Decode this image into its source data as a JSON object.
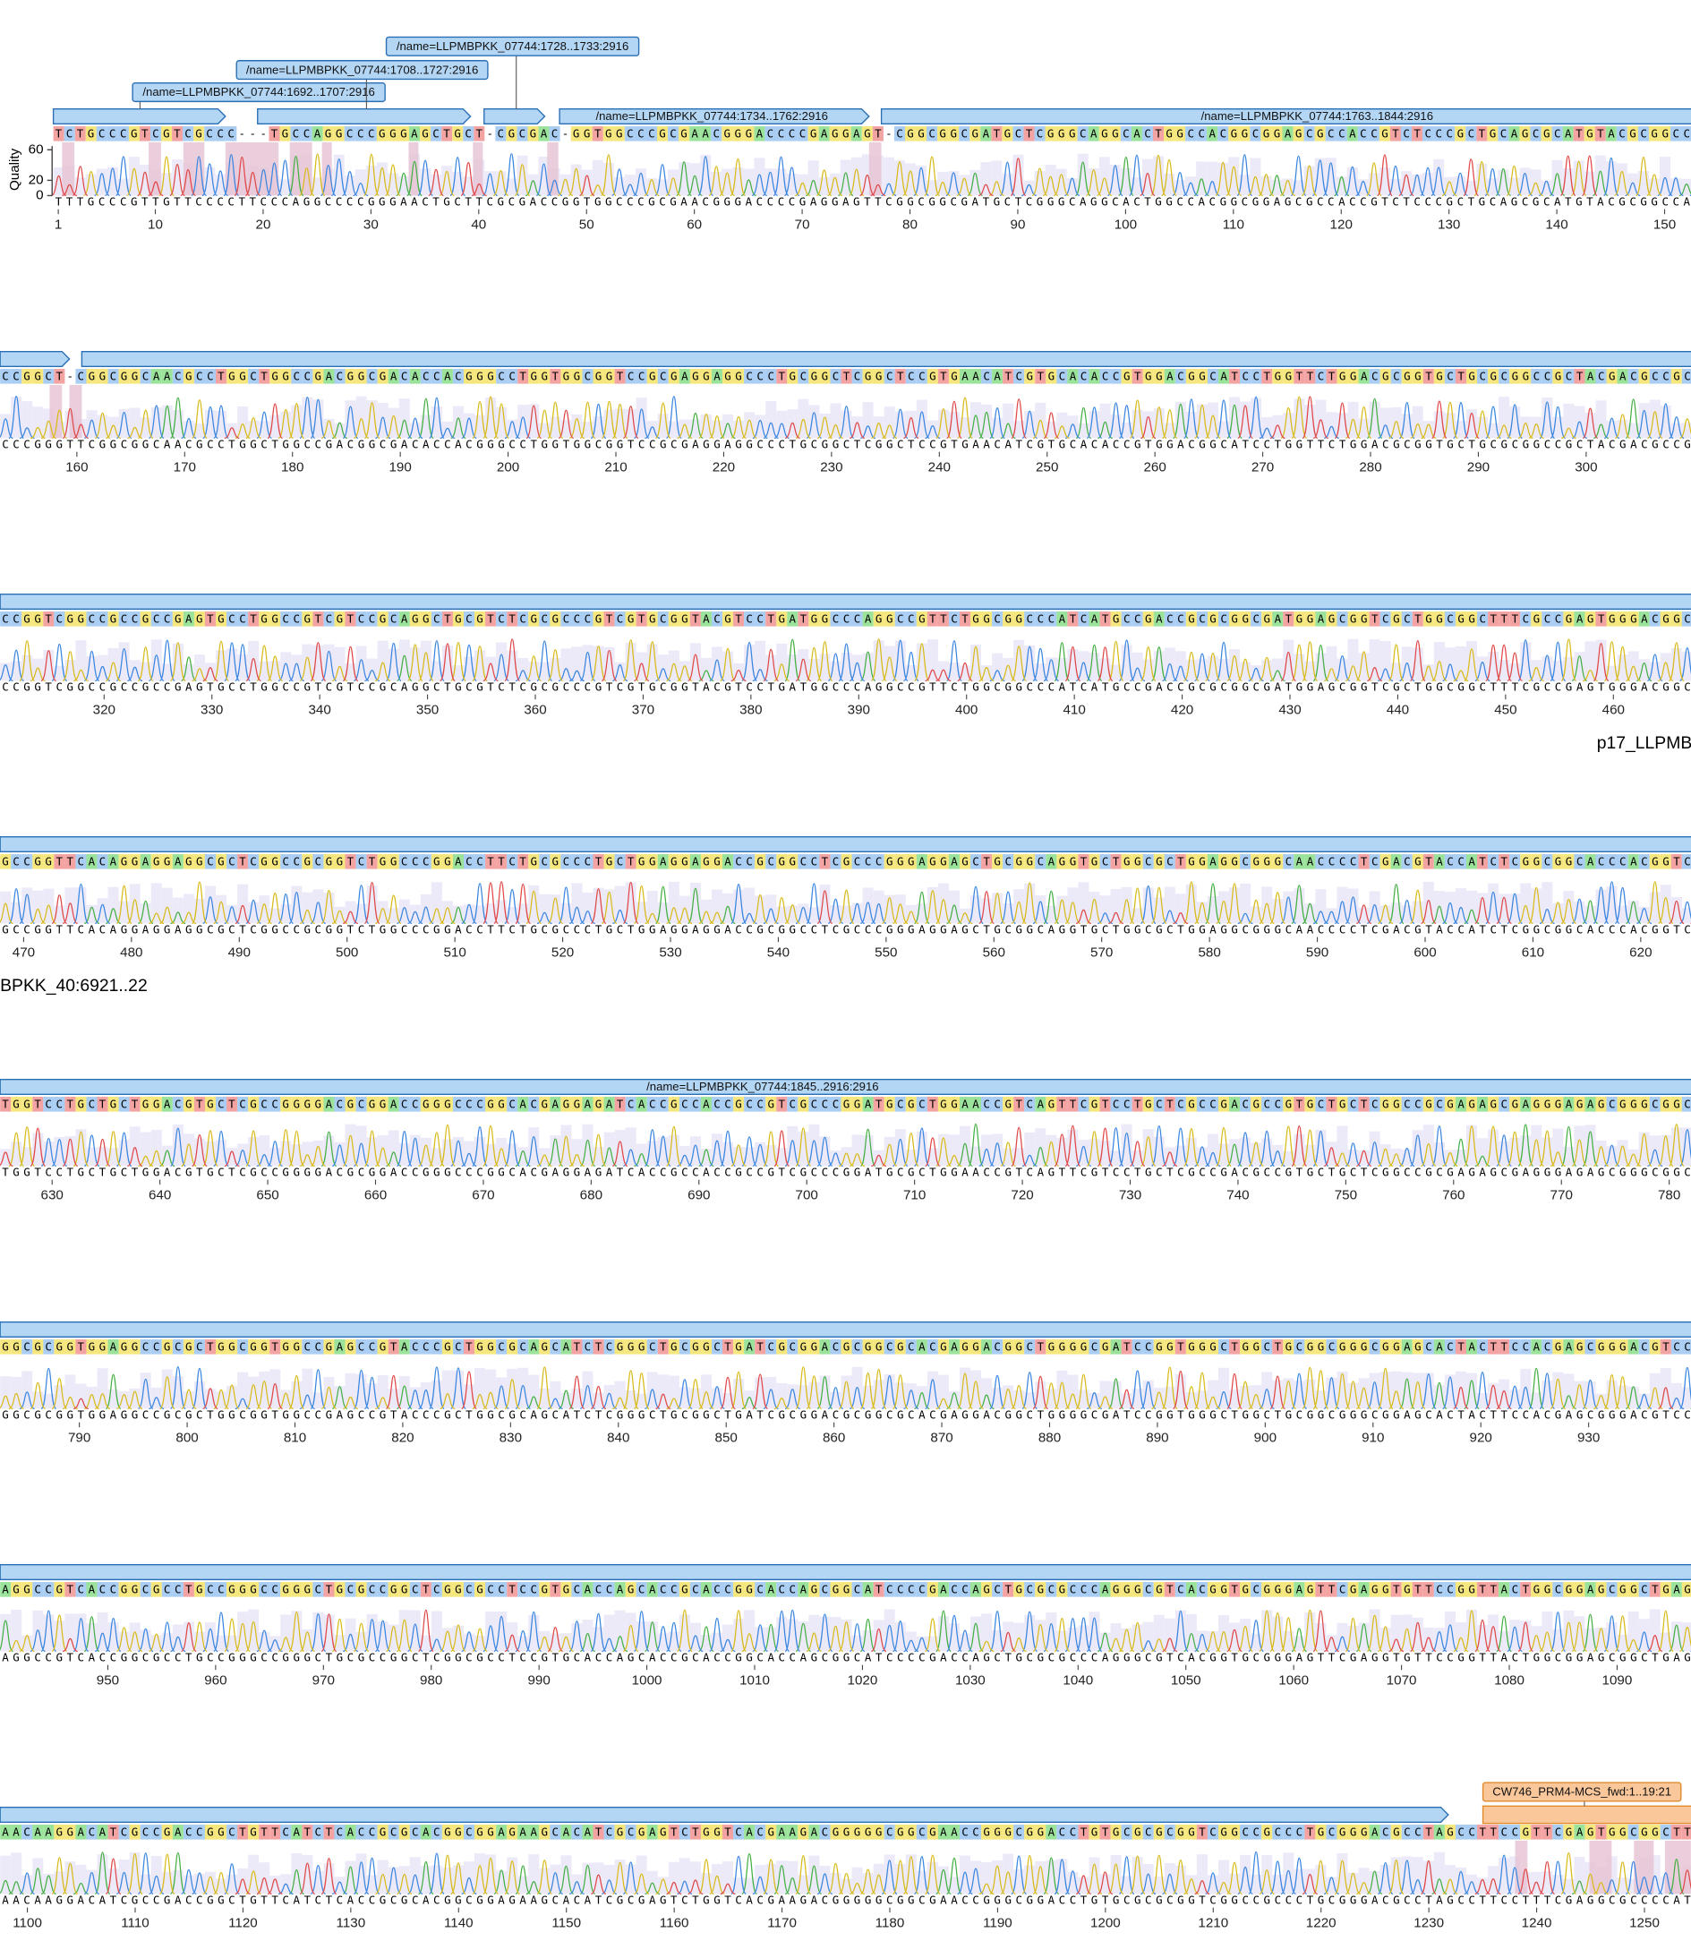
{
  "axis_label": "Quality",
  "quality_ticks": [
    0,
    20,
    60
  ],
  "annotations": [
    "/name=LLPMBPKK_07744:1692..1707:2916",
    "/name=LLPMBPKK_07744:1708..1727:2916",
    "/name=LLPMBPKK_07744:1728..1733:2916",
    "/name=LLPMBPKK_07744:1734..1762:2916",
    "/name=LLPMBPKK_07744:1763..1844:2916",
    "/name=LLPMBPKK_07744:1845..2916:2916",
    "CW746_PRM4-MCS_fwd:1..19:21"
  ],
  "contig_label_parts": [
    "p17_LLPMB",
    "BPKK_40:6921..22"
  ],
  "rows": [
    {
      "consensus": "TCTGCCCGTCGTCGCCC---TGCCAGGCCCGGGAGCTGCT-CGCGAC-GGTGGCCCGCGAACGGGACCCCGAGGAGT-CGGCGGCGATGCTCGGGCAGGCACTGGCCACGGCGGAGCGCCACCGTCTCCCGCTGCAGCGCATGTACGCGGCCAC",
      "read": "TTTGCCCGTTGTTCCCCTTCCCAGGCCCCGGGAACTGCTTCGCGACCGGTGGCCCGCGAACGGGACCCCGAGGAGTTCGGCGGCGATGCTCGGGCAGGCACTGGCCACGGCGGAGCGCCACCGTCTCCCGCTGCAGCGCATGTACGCGGCCAC",
      "ticks": [
        1,
        10,
        20,
        30,
        40,
        50,
        60,
        70,
        80,
        90,
        100,
        110,
        120,
        130,
        140,
        150
      ]
    },
    {
      "consensus": "CCGGCT-CGGCGGCAACGCCTGGCTGGCCGACGGCGACACCACGGGCCTGGTGGCGGTCCGCGAGGAGGCCCTGCGGCTCGGCTCCGTGAACATCGTGCACACCGTGGACGGCATCCTGGTTCTGGACGCGGTGCTGCGCGGCCGCTACGACGCCGC",
      "read": "CCCGGGTTCGGCGGCAACGCCTGGCTGGCCGACGGCGACACCACGGGCCTGGTGGCGGTCCGCGAGGAGGCCCTGCGGCTCGGCTCCGTGAACATCGTGCACACCGTGGACGGCATCCTGGTTCTGGACGCGGTGCTGCGCGGCCGCTACGACGCCGC",
      "ticks": [
        160,
        170,
        180,
        190,
        200,
        210,
        220,
        230,
        240,
        250,
        260,
        270,
        280,
        290,
        300
      ]
    },
    {
      "consensus": "CCGGTCGGCCGCCGCCGAGTGCCTGGCCGTCGTCCGCAGGCTGCGTCTCGCGCCCGTCGTGCGGTACGTCCTGATGGCCCAGGCCGTTCTGGCGGCCCATCATGCCGACCGCGCGGCGATGGAGCGGTCGCTGGCGGCTTTCGCCGAGTGGGACGGC",
      "read": "CCGGTCGGCCGCCGCCGAGTGCCTGGCCGTCGTCCGCAGGCTGCGTCTCGCGCCCGTCGTGCGGTACGTCCTGATGGCCCAGGCCGTTCTGGCGGCCCATCATGCCGACCGCGCGGCGATGGAGCGGTCGCTGGCGGCTTTCGCCGAGTGGGACGGC",
      "ticks": [
        320,
        330,
        340,
        350,
        360,
        370,
        380,
        390,
        400,
        410,
        420,
        430,
        440,
        450,
        460
      ]
    },
    {
      "consensus": "GCCGGTTCACAGGAGGAGGCGCTCGGCCGCGGTCTGGCCCGGACCTTCTGCGCCCTGCTGGAGGAGGACCGCGGCCTCGCCCGGGAGGAGCTGCGGCAGGTGCTGGCGCTGGAGGCGGGCAACCCCTCGACGTACCATCTCGGCGGCACCCACGGTCT",
      "read": "GCCGGTTCACAGGAGGAGGCGCTCGGCCGCGGTCTGGCCCGGACCTTCTGCGCCCTGCTGGAGGAGGACCGCGGCCTCGCCCGGGAGGAGCTGCGGCAGGTGCTGGCGCTGGAGGCGGGCAACCCCTCGACGTACCATCTCGGCGGCACCCACGGTCT",
      "ticks": [
        470,
        480,
        490,
        500,
        510,
        520,
        530,
        540,
        550,
        560,
        570,
        580,
        590,
        600,
        610,
        620
      ]
    },
    {
      "consensus": "TGGTCCTGCTGCTGGACGTGCTCGCCGGGGACGCGGACCGGGCCCGGCACGAGGAGATCACCGCCACCGCCGTCGCCCGGATGCGCTGGAACCGTCAGTTCGTCCTGCTCGCCGACGCCGTGCTGCTCGGCCGCGAGAGCGAGGGAGAGCGGGCGGCG",
      "read": "TGGTCCTGCTGCTGGACGTGCTCGCCGGGGACGCGGACCGGGCCCGGCACGAGGAGATCACCGCCACCGCCGTCGCCCGGATGCGCTGGAACCGTCAGTTCGTCCTGCTCGCCGACGCCGTGCTGCTCGGCCGCGAGAGCGAGGGAGAGCGGGCGGCG",
      "ticks": [
        630,
        640,
        650,
        660,
        670,
        680,
        690,
        700,
        710,
        720,
        730,
        740,
        750,
        760,
        770,
        780
      ]
    },
    {
      "consensus": "GGCGCGGTGGAGGCCGCGCTGGCGGTGGCCGAGCCGTACCCGCTGGCGCAGCATCTCGGGCTGCGGCTGATCGCGGACGCGGCGCACGAGGACGGCTGGGGCGATCCGGTGGGCTGGCTGCGGCGGGCGGAGCACTACTTCCACGAGCGGGACGTCCA",
      "read": "GGCGCGGTGGAGGCCGCGCTGGCGGTGGCCGAGCCGTACCCGCTGGCGCAGCATCTCGGGCTGCGGCTGATCGCGGACGCGGCGCACGAGGACGGCTGGGGCGATCCGGTGGGCTGGCTGCGGCGGGCGGAGCACTACTTCCACGAGCGGGACGTCCA",
      "ticks": [
        790,
        800,
        810,
        820,
        830,
        840,
        850,
        860,
        870,
        880,
        890,
        900,
        910,
        920,
        930
      ]
    },
    {
      "consensus": "AGGCCGTCACCGGCGCCTGCCGGGCCGGGCTGCGCCGGCTCGGCGCCTCCGTGCACCAGCACCGCACCGGCACCAGCGGCATCCCCGACCAGCTGCGCGCCCAGGGCGTCACGGTGCGGGAGTTCGAGGTGTTCCGGTTACTGGCGGAGCGGCTGAGC",
      "read": "AGGCCGTCACCGGCGCCTGCCGGGCCGGGCTGCGCCGGCTCGGCGCCTCCGTGCACCAGCACCGCACCGGCACCAGCGGCATCCCCGACCAGCTGCGCGCCCAGGGCGTCACGGTGCGGGAGTTCGAGGTGTTCCGGTTACTGGCGGAGCGGCTGAGC",
      "ticks": [
        950,
        960,
        970,
        980,
        990,
        1000,
        1010,
        1020,
        1030,
        1040,
        1050,
        1060,
        1070,
        1080,
        1090
      ]
    },
    {
      "consensus": "AACAAGGACATCGCCGACCGGCTGTTCATCTCACCGCGCACGGCGGAGAAGCACATCGCGAGTCTGGTCACGAAGACGGGGGCGGCGAACCGGGCGGACCTGTGCGCGCGGTCGGCCGCCCTGCGGGACGCCTAGCCTTCCGTTCGAGTGGCGGCTT",
      "read": "AACAAGGACATCGCCGACCGGCTGTTCATCTCACCGCGCACGGCGGAGAAGCACATCGCGAGTCTGGTCACGAAGACGGGGGCGGCGAACCGGGCGGACCTGTGCGCGCGGTCGGCCGCCCTGCGGGACGCCTAGCCTTCCTTTCGAGGCGCCCCAT",
      "ticks": [
        1100,
        1110,
        1120,
        1130,
        1140,
        1150,
        1160,
        1170,
        1180,
        1190,
        1200,
        1210,
        1220,
        1230,
        1240,
        1250
      ]
    }
  ]
}
